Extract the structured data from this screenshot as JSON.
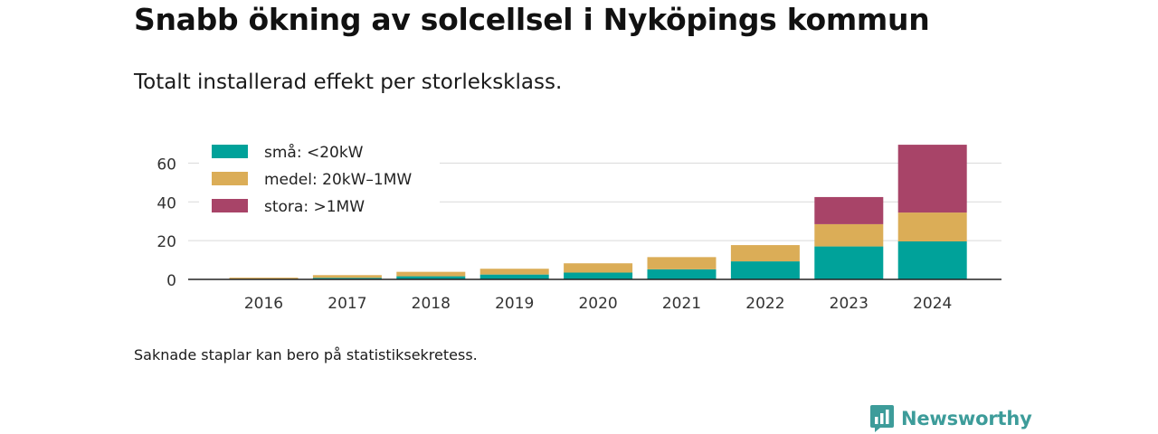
{
  "title": "Snabb ökning av solcellsel i Nyköpings kommun",
  "subtitle": "Totalt installerad effekt per storleksklass.",
  "footnote": "Saknade staplar kan bero på statistiksekretess.",
  "brand": {
    "name": "Newsworthy",
    "icon": "newsworthy-logo-icon",
    "color": "#3d9c9a"
  },
  "chart_data": {
    "type": "bar",
    "stacked": true,
    "categories": [
      "2016",
      "2017",
      "2018",
      "2019",
      "2020",
      "2021",
      "2022",
      "2023",
      "2024"
    ],
    "series": [
      {
        "name": "små: <20kW",
        "color": "#00a29a",
        "values": [
          0.3,
          0.8,
          1.6,
          2.5,
          3.5,
          5.2,
          9.3,
          17.0,
          19.6
        ]
      },
      {
        "name": "medel: 20kW–1MW",
        "color": "#dbad57",
        "values": [
          0.6,
          1.4,
          2.3,
          3.0,
          4.8,
          6.3,
          8.4,
          11.5,
          14.9
        ]
      },
      {
        "name": "stora: >1MW",
        "color": "#a84468",
        "values": [
          0,
          0,
          0,
          0,
          0,
          0,
          0,
          14.0,
          35.0
        ]
      }
    ],
    "y_ticks": [
      0,
      20,
      40,
      60
    ],
    "ylim": [
      0,
      70
    ],
    "xlabel": "",
    "ylabel": "",
    "grid": true,
    "legend": "top-left"
  }
}
